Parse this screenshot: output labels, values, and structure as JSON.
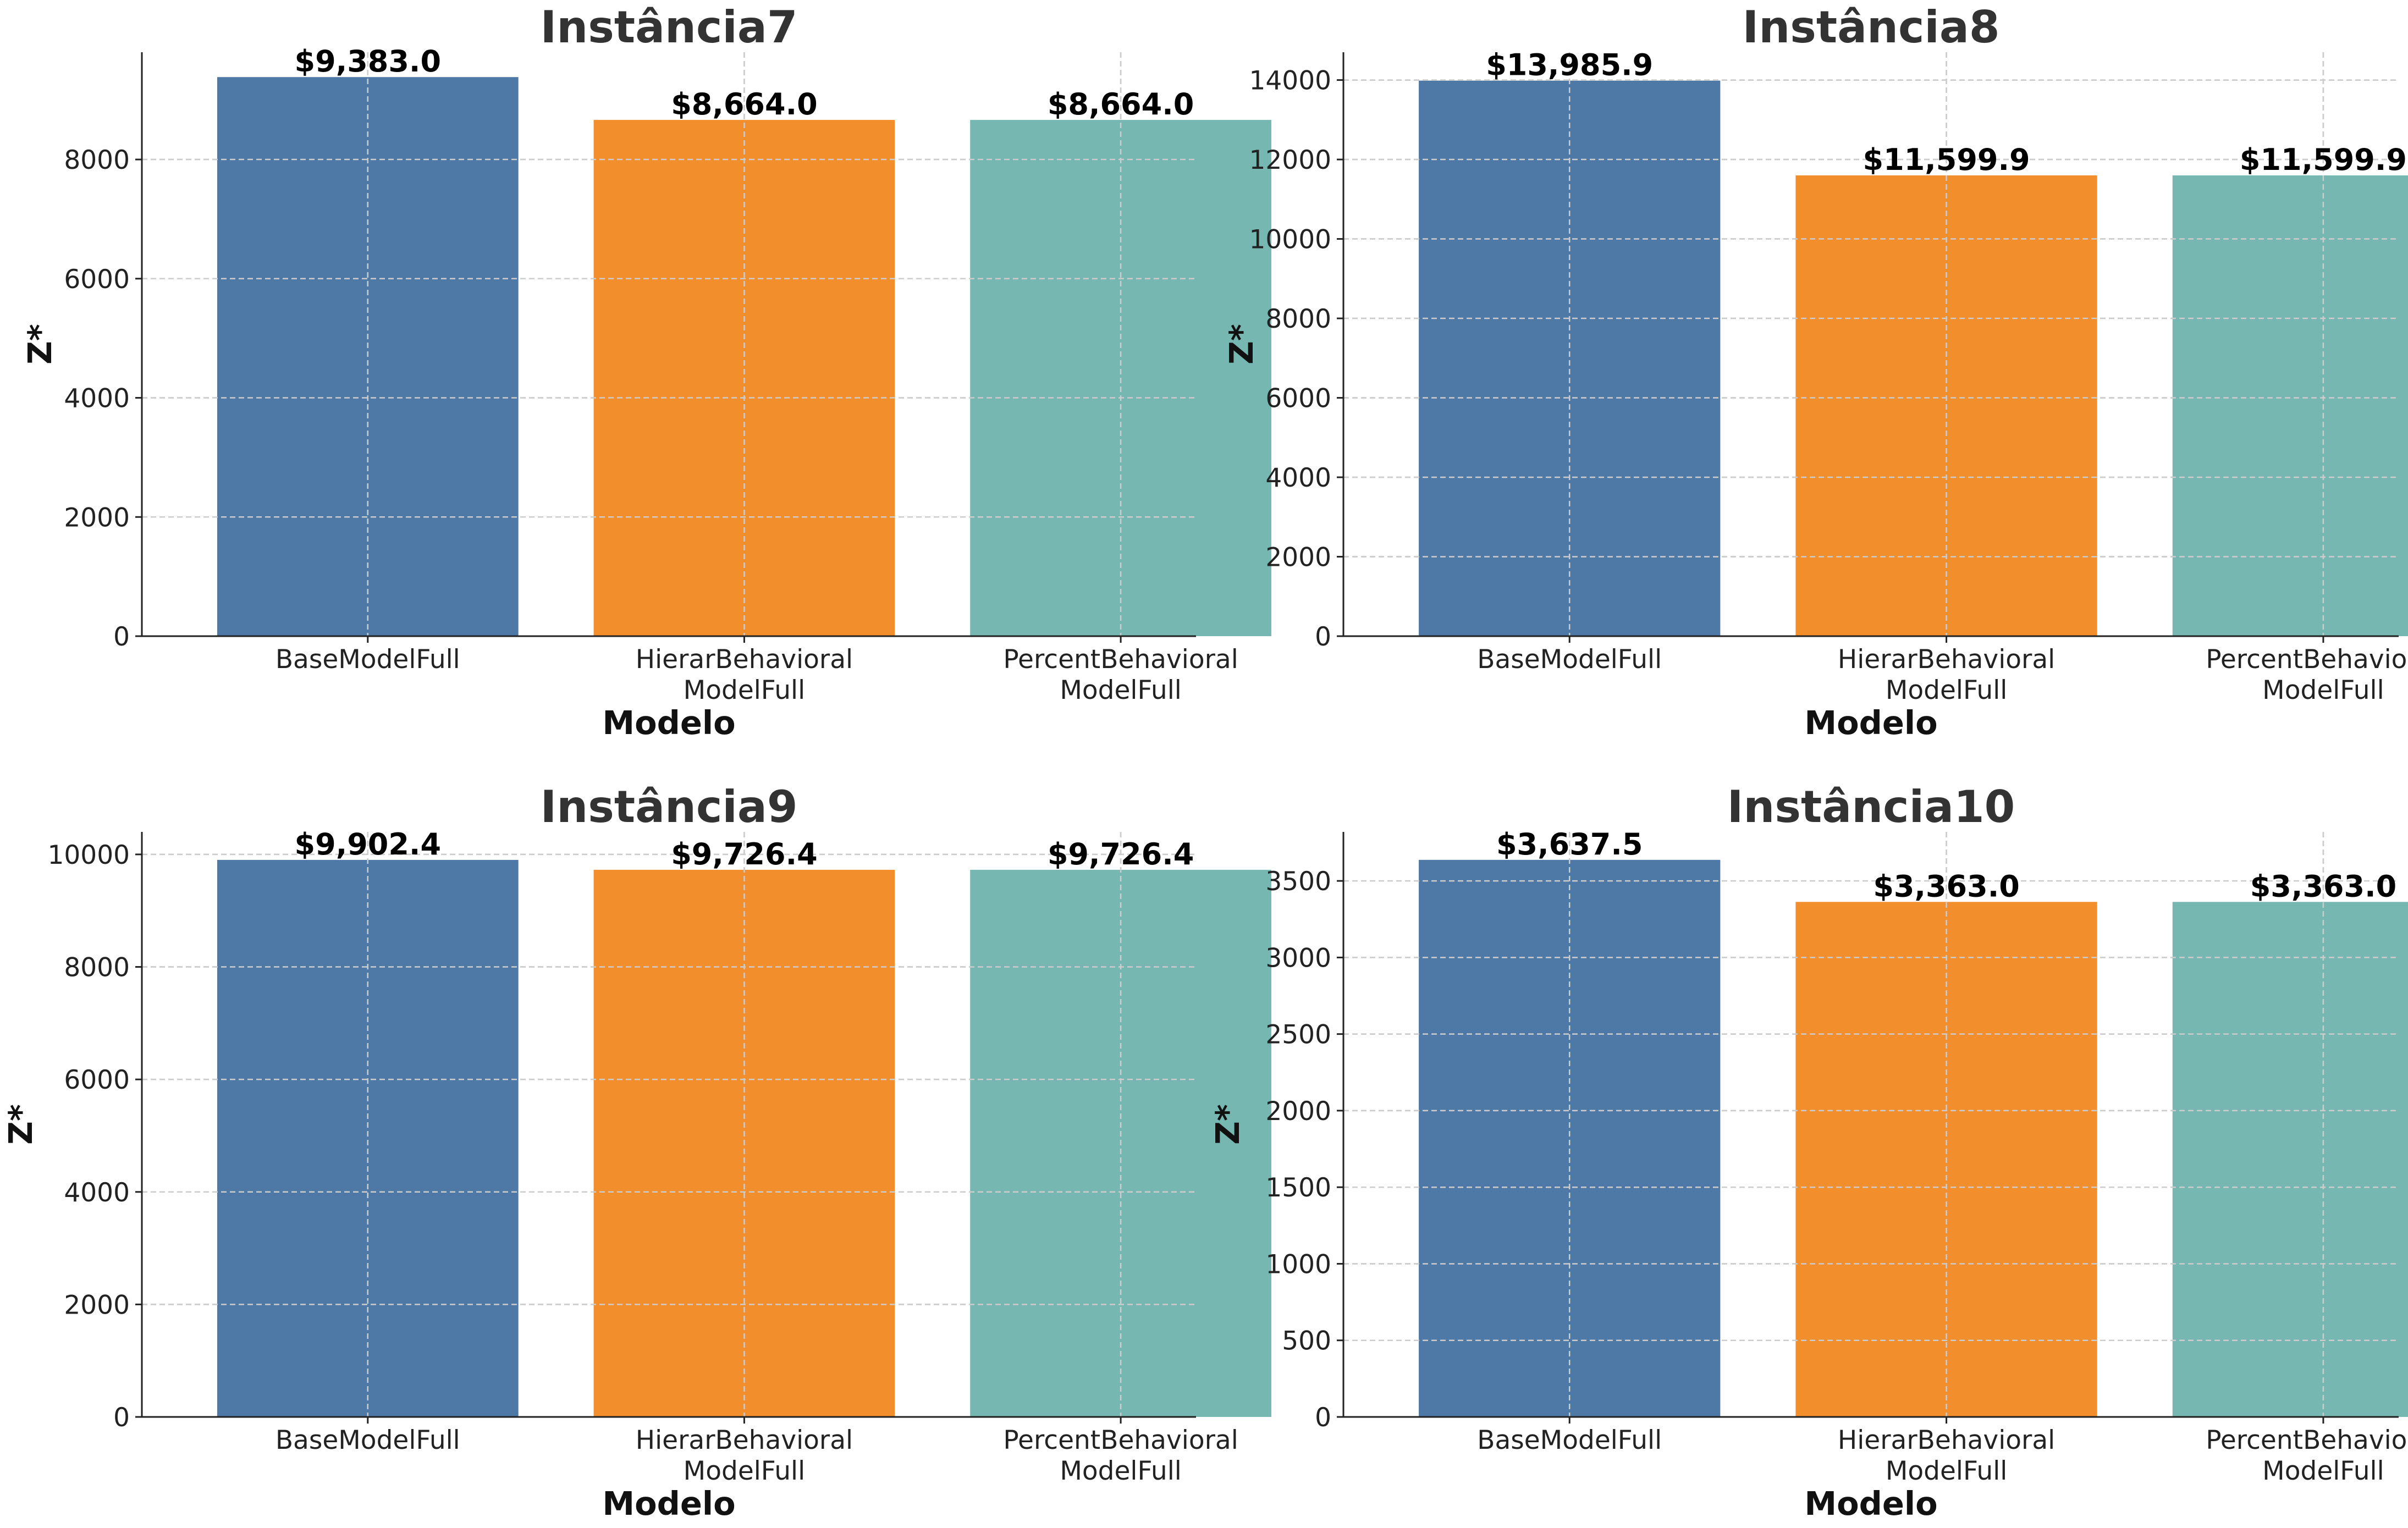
{
  "chart_data": [
    {
      "type": "bar",
      "title": "Instância7",
      "xlabel": "Modelo",
      "ylabel": "Z*",
      "categories": [
        [
          "BaseModelFull"
        ],
        [
          "HierarBehavioral",
          "ModelFull"
        ],
        [
          "PercentBehavioral",
          "ModelFull"
        ]
      ],
      "values": [
        9383.0,
        8664.0,
        8664.0
      ],
      "value_labels": [
        "$9,383.0",
        "$8,664.0",
        "$8,664.0"
      ],
      "ylim": [
        0,
        9800
      ],
      "yticks": [
        0,
        2000,
        4000,
        6000,
        8000
      ],
      "colors": [
        "#4e79a7",
        "#f28e2b",
        "#76b7b2"
      ],
      "grid": true
    },
    {
      "type": "bar",
      "title": "Instância8",
      "xlabel": "Modelo",
      "ylabel": "Z*",
      "categories": [
        [
          "BaseModelFull"
        ],
        [
          "HierarBehavioral",
          "ModelFull"
        ],
        [
          "PercentBehavioral",
          "ModelFull"
        ]
      ],
      "values": [
        13985.9,
        11599.9,
        11599.9
      ],
      "value_labels": [
        "$13,985.9",
        "$11,599.9",
        "$11,599.9"
      ],
      "ylim": [
        0,
        14700
      ],
      "yticks": [
        0,
        2000,
        4000,
        6000,
        8000,
        10000,
        12000,
        14000
      ],
      "colors": [
        "#4e79a7",
        "#f28e2b",
        "#76b7b2"
      ],
      "grid": true
    },
    {
      "type": "bar",
      "title": "Instância9",
      "xlabel": "Modelo",
      "ylabel": "Z*",
      "categories": [
        [
          "BaseModelFull"
        ],
        [
          "HierarBehavioral",
          "ModelFull"
        ],
        [
          "PercentBehavioral",
          "ModelFull"
        ]
      ],
      "values": [
        9902.4,
        9726.4,
        9726.4
      ],
      "value_labels": [
        "$9,902.4",
        "$9,726.4",
        "$9,726.4"
      ],
      "ylim": [
        0,
        10400
      ],
      "yticks": [
        0,
        2000,
        4000,
        6000,
        8000,
        10000
      ],
      "colors": [
        "#4e79a7",
        "#f28e2b",
        "#76b7b2"
      ],
      "grid": true
    },
    {
      "type": "bar",
      "title": "Instância10",
      "xlabel": "Modelo",
      "ylabel": "Z*",
      "categories": [
        [
          "BaseModelFull"
        ],
        [
          "HierarBehavioral",
          "ModelFull"
        ],
        [
          "PercentBehavioral",
          "ModelFull"
        ]
      ],
      "values": [
        3637.5,
        3363.0,
        3363.0
      ],
      "value_labels": [
        "$3,637.5",
        "$3,363.0",
        "$3,363.0"
      ],
      "ylim": [
        0,
        3820
      ],
      "yticks": [
        0,
        500,
        1000,
        1500,
        2000,
        2500,
        3000,
        3500
      ],
      "colors": [
        "#4e79a7",
        "#f28e2b",
        "#76b7b2"
      ],
      "grid": true
    }
  ]
}
